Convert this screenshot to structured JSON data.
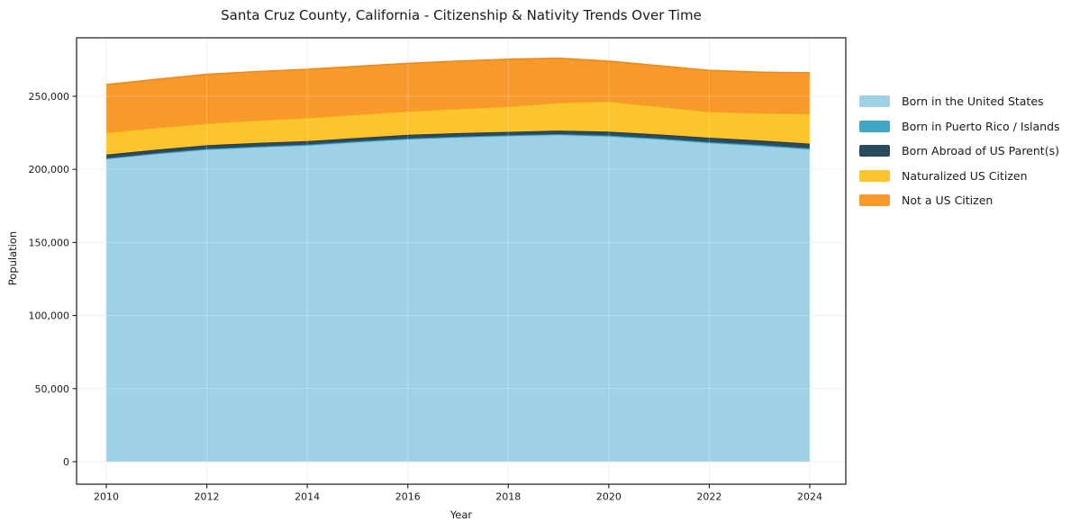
{
  "chart_data": {
    "type": "area",
    "stacked": true,
    "title": "Santa Cruz County, California - Citizenship & Nativity Trends Over Time",
    "xlabel": "Year",
    "ylabel": "Population",
    "x": [
      2010,
      2011,
      2012,
      2013,
      2014,
      2015,
      2016,
      2017,
      2018,
      2019,
      2020,
      2021,
      2022,
      2023,
      2024
    ],
    "series": [
      {
        "name": "Born in the United States",
        "color": "#9fd1e6",
        "edge": "#8ec4dd",
        "values": [
          207000,
          210500,
          213400,
          215000,
          216300,
          218500,
          220500,
          221800,
          222800,
          223500,
          222500,
          220500,
          218000,
          216000,
          213700
        ]
      },
      {
        "name": "Born in Puerto Rico / Islands",
        "color": "#41a6c4",
        "edge": "#2d8fae",
        "values": [
          600,
          600,
          650,
          650,
          700,
          700,
          650,
          600,
          600,
          650,
          700,
          700,
          750,
          800,
          800
        ]
      },
      {
        "name": "Born Abroad of US Parent(s)",
        "color": "#2a4a5e",
        "edge": "#20394a",
        "values": [
          2500,
          2400,
          2450,
          2500,
          2400,
          2300,
          2500,
          2400,
          2300,
          2400,
          2600,
          2700,
          2900,
          3000,
          3100
        ]
      },
      {
        "name": "Naturalized US Citizen",
        "color": "#fdc42e",
        "edge": "#eeaf16",
        "values": [
          15100,
          15000,
          14900,
          15400,
          15900,
          16000,
          16100,
          16700,
          17300,
          19000,
          20700,
          19000,
          17800,
          18700,
          20500
        ]
      },
      {
        "name": "Not a US Citizen",
        "color": "#f8992b",
        "edge": "#ee8a15",
        "values": [
          32800,
          33100,
          33600,
          33400,
          33100,
          33000,
          32800,
          32600,
          32400,
          30500,
          27600,
          28000,
          28300,
          28000,
          28000
        ]
      }
    ],
    "x_ticks": {
      "values": [
        2010,
        2012,
        2014,
        2016,
        2018,
        2020,
        2022,
        2024
      ],
      "labels": [
        "2010",
        "2012",
        "2014",
        "2016",
        "2018",
        "2020",
        "2022",
        "2024"
      ]
    },
    "y_ticks": {
      "values": [
        0,
        50000,
        100000,
        150000,
        200000,
        250000
      ],
      "labels": [
        "0",
        "50,000",
        "100,000",
        "150,000",
        "200,000",
        "250,000"
      ]
    },
    "xlim": [
      2009.41,
      2024.72
    ],
    "ylim": [
      -15000,
      290000
    ],
    "grid": true,
    "legend_position": "right"
  }
}
